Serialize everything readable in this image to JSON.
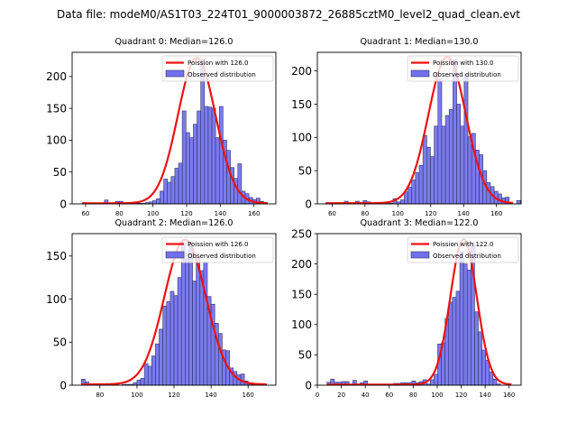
{
  "figure": {
    "suptitle": "Data file: modeM0/AS1T03_224T01_9000003872_26885cztM0_level2_quad_clean.evt"
  },
  "colors": {
    "bar_fill": "#7070ee",
    "bar_edge": "#333366",
    "poisson_line": "#ee1111",
    "axes": "#000000",
    "background": "#ffffff"
  },
  "chart_data": [
    {
      "type": "bar",
      "title": "Quadrant 0: Median=126.0",
      "xlabel": "",
      "ylabel": "",
      "xlim": [
        52,
        173
      ],
      "ylim": [
        0,
        238
      ],
      "xticks": [
        60,
        80,
        100,
        120,
        140,
        160
      ],
      "yticks": [
        0,
        50,
        100,
        150,
        200
      ],
      "legend": {
        "placement": "top-right",
        "entries": [
          "Poission with 126.0",
          "Observed distribution"
        ]
      },
      "bins_start": 58,
      "bin_width": 2.2,
      "values": [
        2,
        1,
        0,
        1,
        1,
        0,
        6,
        0,
        0,
        4,
        4,
        0,
        0,
        1,
        1,
        1,
        1,
        2,
        3,
        5,
        8,
        20,
        39,
        34,
        43,
        56,
        64,
        146,
        112,
        104,
        125,
        146,
        227,
        153,
        152,
        150,
        104,
        153,
        100,
        84,
        57,
        40,
        63,
        20,
        16,
        10,
        7,
        9,
        4,
        2
      ],
      "poisson": {
        "mean": 126.0,
        "peak": 228,
        "sigma": 11.2,
        "range": [
          58,
          168
        ]
      }
    },
    {
      "type": "bar",
      "title": "Quadrant 1: Median=130.0",
      "xlabel": "",
      "ylabel": "",
      "xlim": [
        51,
        175
      ],
      "ylim": [
        0,
        228
      ],
      "xticks": [
        60,
        80,
        100,
        120,
        140,
        160
      ],
      "yticks": [
        0,
        50,
        100,
        150,
        200
      ],
      "legend": {
        "placement": "top-right",
        "entries": [
          "Poission with 130.0",
          "Observed distribution"
        ]
      },
      "bins_start": 56,
      "bin_width": 2.28,
      "values": [
        1,
        1,
        0,
        0,
        1,
        4,
        0,
        0,
        4,
        1,
        5,
        3,
        0,
        0,
        0,
        0,
        1,
        1,
        8,
        3,
        6,
        18,
        25,
        36,
        47,
        58,
        103,
        85,
        71,
        117,
        188,
        117,
        133,
        142,
        217,
        150,
        117,
        195,
        101,
        106,
        81,
        74,
        50,
        32,
        26,
        19,
        15,
        9,
        10,
        1,
        0,
        5
      ],
      "poisson": {
        "mean": 130.0,
        "peak": 220,
        "sigma": 11.4,
        "range": [
          56,
          170
        ]
      }
    },
    {
      "type": "bar",
      "title": "Quadrant 2: Median=126.0",
      "xlabel": "",
      "ylabel": "",
      "xlim": [
        65,
        175
      ],
      "ylim": [
        0,
        176
      ],
      "xticks": [
        80,
        100,
        120,
        140,
        160
      ],
      "yticks": [
        0,
        50,
        100,
        150
      ],
      "legend": {
        "placement": "top-right",
        "entries": [
          "Poission with 126.0",
          "Observed distribution"
        ]
      },
      "bins_start": 70,
      "bin_width": 2.0,
      "values": [
        7,
        4,
        0,
        0,
        1,
        1,
        1,
        0,
        2,
        1,
        0,
        1,
        1,
        1,
        3,
        6,
        8,
        25,
        22,
        34,
        48,
        65,
        92,
        97,
        109,
        104,
        125,
        166,
        147,
        166,
        121,
        148,
        133,
        143,
        103,
        94,
        72,
        60,
        41,
        40,
        20,
        16,
        12,
        13,
        5,
        3,
        1,
        0,
        0,
        1
      ],
      "poisson": {
        "mean": 126.0,
        "peak": 168,
        "sigma": 11.2,
        "range": [
          70,
          170
        ]
      }
    },
    {
      "type": "bar",
      "title": "Quadrant 3: Median=122.0",
      "xlabel": "",
      "ylabel": "",
      "xlim": [
        0,
        170
      ],
      "ylim": [
        0,
        250
      ],
      "xticks": [
        0,
        20,
        40,
        60,
        80,
        100,
        120,
        140,
        160
      ],
      "yticks": [
        0,
        50,
        100,
        150,
        200,
        250
      ],
      "legend": {
        "placement": "top-right",
        "entries": [
          "Poission with 122.0",
          "Observed distribution"
        ]
      },
      "bins_start": 8,
      "bin_width": 3.08,
      "values": [
        5,
        10,
        5,
        5,
        6,
        6,
        0,
        8,
        0,
        4,
        7,
        0,
        0,
        1,
        0,
        0,
        1,
        0,
        3,
        3,
        4,
        4,
        4,
        7,
        4,
        6,
        9,
        2,
        9,
        18,
        68,
        70,
        110,
        137,
        145,
        155,
        220,
        200,
        190,
        235,
        121,
        88,
        58,
        41,
        22,
        10,
        2
      ],
      "poisson": {
        "mean": 122.0,
        "peak": 240,
        "sigma": 11.0,
        "range": [
          8,
          162
        ]
      }
    }
  ]
}
